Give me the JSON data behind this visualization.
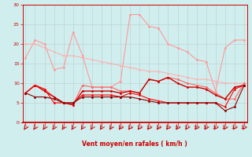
{
  "x": [
    0,
    1,
    2,
    3,
    4,
    5,
    6,
    7,
    8,
    9,
    10,
    11,
    12,
    13,
    14,
    15,
    16,
    17,
    18,
    19,
    20,
    21,
    22,
    23
  ],
  "lines": [
    {
      "color": "#FF9999",
      "linewidth": 0.8,
      "markersize": 2.0,
      "y": [
        16.5,
        21,
        20,
        13.5,
        14,
        23,
        17,
        9,
        9,
        9,
        10.5,
        27.5,
        27.5,
        24.5,
        24,
        20,
        19,
        18,
        16,
        15.5,
        8,
        19,
        21,
        21
      ]
    },
    {
      "color": "#FFB0B0",
      "linewidth": 0.8,
      "markersize": 1.8,
      "y": [
        20,
        20,
        19,
        18,
        17,
        17,
        16.5,
        16,
        15.5,
        15,
        14.5,
        14,
        13.5,
        13,
        13,
        12.5,
        12,
        11.5,
        11,
        11,
        10.5,
        10,
        10,
        10
      ]
    },
    {
      "color": "#FF6666",
      "linewidth": 0.8,
      "markersize": 2.0,
      "y": [
        7.5,
        9.5,
        8.5,
        6.5,
        5,
        4.5,
        9.5,
        9,
        9,
        9,
        8,
        8,
        7.5,
        11,
        10.5,
        11.5,
        11,
        10,
        9.5,
        9,
        7.5,
        6,
        6,
        10
      ]
    },
    {
      "color": "#CC0000",
      "linewidth": 1.0,
      "markersize": 2.0,
      "y": [
        7.5,
        9.5,
        8,
        6.5,
        5,
        4.5,
        8,
        8,
        8,
        8,
        7.5,
        8,
        7.5,
        11,
        10.5,
        11.5,
        10,
        9,
        9,
        8.5,
        7,
        6,
        9,
        9.5
      ]
    },
    {
      "color": "#FF0000",
      "linewidth": 0.8,
      "markersize": 2.0,
      "y": [
        7.5,
        9.5,
        8.5,
        5,
        5,
        5,
        7,
        7,
        7,
        7,
        6.5,
        7.5,
        7,
        6,
        5.5,
        5,
        5,
        5,
        5,
        5,
        5,
        4,
        8.5,
        9.5
      ]
    },
    {
      "color": "#880000",
      "linewidth": 0.8,
      "markersize": 2.0,
      "y": [
        7.5,
        6.5,
        6.5,
        6,
        5,
        5,
        6.5,
        6.5,
        6.5,
        6.5,
        6.5,
        6.5,
        6,
        5.5,
        5,
        5,
        5,
        5,
        5,
        5,
        5,
        3,
        4,
        9.5
      ]
    }
  ],
  "xlim": [
    -0.3,
    23.3
  ],
  "ylim": [
    0,
    30
  ],
  "yticks": [
    0,
    5,
    10,
    15,
    20,
    25,
    30
  ],
  "xticks": [
    0,
    1,
    2,
    3,
    4,
    5,
    6,
    7,
    8,
    9,
    10,
    11,
    12,
    13,
    14,
    15,
    16,
    17,
    18,
    19,
    20,
    21,
    22,
    23
  ],
  "xlabel": "Vent moyen/en rafales ( km/h )",
  "xlabel_color": "#CC0000",
  "bg_color": "#D0EEEE",
  "grid_color": "#BBCCCC",
  "tick_color": "#CC0000",
  "axis_color": "#CC0000"
}
